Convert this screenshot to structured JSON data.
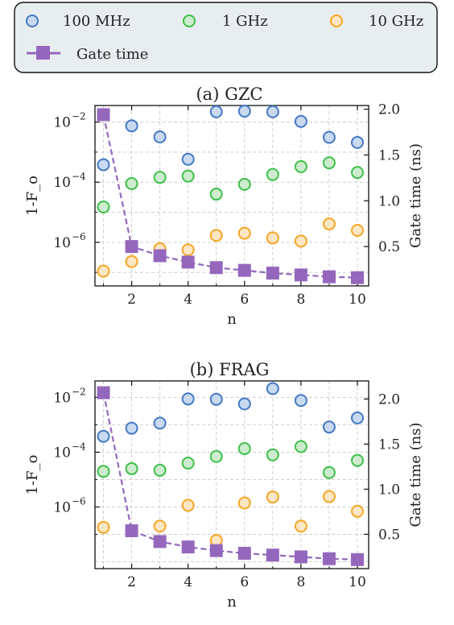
{
  "legend": {
    "entries": [
      {
        "label": "100 MHz",
        "color": "#4479c4",
        "fill": "#c9d9ef",
        "marker": "circle"
      },
      {
        "label": "1 GHz",
        "color": "#3fbf4a",
        "fill": "#cdeccf",
        "marker": "circle"
      },
      {
        "label": "10 GHz",
        "color": "#f5a623",
        "fill": "#fde6c4",
        "marker": "circle"
      },
      {
        "label": "Gate time",
        "color": "#9467bd",
        "marker": "square-dashed-line"
      }
    ],
    "background": "#e8eef0"
  },
  "chart_data": [
    {
      "type": "scatter",
      "title": "(a) GZC",
      "xlabel": "n",
      "ylabel": "1-F_o",
      "ylabel_right": "Gate time (ns)",
      "yscale": "log",
      "xlim": [
        0.7,
        10.4
      ],
      "ylim_log10": [
        -7.45,
        -1.45
      ],
      "y2lim": [
        0.07,
        2.04
      ],
      "grid": true,
      "x_ticks": [
        2,
        4,
        6,
        8,
        10
      ],
      "y_ticks": [
        {
          "exp": -2,
          "text": "10"
        },
        {
          "exp": -4,
          "text": "10"
        },
        {
          "exp": -6,
          "text": "10"
        }
      ],
      "y_tick_exps": [
        "−2",
        "−4",
        "−6"
      ],
      "y2_ticks": [
        "0.5",
        "1.0",
        "1.5",
        "2.0"
      ],
      "x": [
        1,
        2,
        3,
        4,
        5,
        6,
        7,
        8,
        9,
        10
      ],
      "series": [
        {
          "name": "100 MHz",
          "values": [
            0.00038,
            0.0075,
            0.0032,
            0.00058,
            0.022,
            0.023,
            0.022,
            0.0105,
            0.0031,
            0.0021
          ]
        },
        {
          "name": "1 GHz",
          "values": [
            1.5e-05,
            9e-05,
            0.000145,
            0.00016,
            4e-05,
            8.5e-05,
            0.00018,
            0.00033,
            0.00044,
            0.00021
          ]
        },
        {
          "name": "10 GHz",
          "values": [
            1.1e-07,
            2.3e-07,
            6.1e-07,
            5.6e-07,
            1.7e-06,
            2e-06,
            1.4e-06,
            1.1e-06,
            4.1e-06,
            2.5e-06
          ]
        }
      ],
      "gate_time": {
        "name": "Gate time",
        "values": [
          1.94,
          0.5,
          0.4,
          0.33,
          0.27,
          0.24,
          0.21,
          0.19,
          0.17,
          0.16
        ]
      }
    },
    {
      "type": "scatter",
      "title": "(b) FRAG",
      "xlabel": "n",
      "ylabel": "1-F_o",
      "ylabel_right": "Gate time (ns)",
      "yscale": "log",
      "xlim": [
        0.7,
        10.4
      ],
      "ylim_log10": [
        -8.25,
        -1.4
      ],
      "y2lim": [
        0.12,
        2.2
      ],
      "grid": true,
      "x_ticks": [
        2,
        4,
        6,
        8,
        10
      ],
      "y_ticks": [
        {
          "exp": -2,
          "text": "10"
        },
        {
          "exp": -4,
          "text": "10"
        },
        {
          "exp": -6,
          "text": "10"
        }
      ],
      "y_tick_exps": [
        "−2",
        "−4",
        "−6"
      ],
      "y2_ticks": [
        "0.5",
        "1.0",
        "1.5",
        "2.0"
      ],
      "x": [
        1,
        2,
        3,
        4,
        5,
        6,
        7,
        8,
        9,
        10
      ],
      "series": [
        {
          "name": "100 MHz",
          "values": [
            0.00038,
            0.00075,
            0.00115,
            0.0088,
            0.0085,
            0.0058,
            0.021,
            0.0077,
            0.00083,
            0.00178
          ]
        },
        {
          "name": "1 GHz",
          "values": [
            2e-05,
            2.5e-05,
            2.2e-05,
            4e-05,
            7e-05,
            0.000135,
            8e-05,
            0.00016,
            1.8e-05,
            5e-05
          ]
        },
        {
          "name": "10 GHz",
          "values": [
            1.8e-07,
            1.35e-07,
            2e-07,
            1.15e-06,
            6e-08,
            1.4e-06,
            2.3e-06,
            2e-07,
            2.4e-06,
            7e-07
          ]
        }
      ],
      "gate_time": {
        "name": "Gate time",
        "values": [
          2.07,
          0.54,
          0.42,
          0.36,
          0.32,
          0.29,
          0.27,
          0.25,
          0.23,
          0.22
        ]
      }
    }
  ]
}
